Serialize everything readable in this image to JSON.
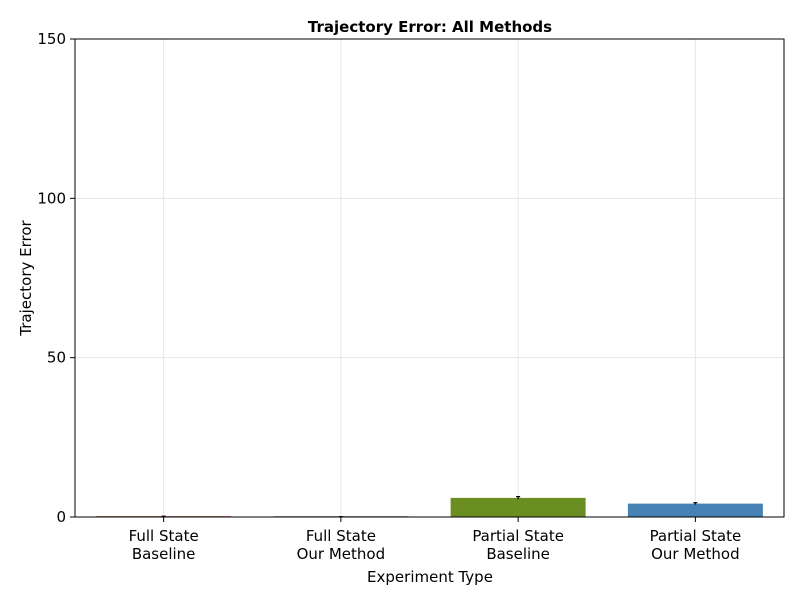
{
  "chart_data": {
    "type": "bar",
    "title": "Trajectory Error: All Methods",
    "xlabel": "Experiment Type",
    "ylabel": "Trajectory Error",
    "ylim": [
      0,
      150
    ],
    "yticks": [
      0,
      50,
      100,
      150
    ],
    "grid": true,
    "categories": [
      [
        "Full State",
        "Baseline"
      ],
      [
        "Full State",
        "Our Method"
      ],
      [
        "Partial State",
        "Baseline"
      ],
      [
        "Partial State",
        "Our Method"
      ]
    ],
    "values": [
      0.2,
      0.1,
      6.0,
      4.2
    ],
    "errors": [
      0.05,
      0.02,
      0.4,
      0.3
    ],
    "colors": [
      "#b03a2e",
      "#7f8c8d",
      "#6b8e23",
      "#4682b4"
    ]
  }
}
